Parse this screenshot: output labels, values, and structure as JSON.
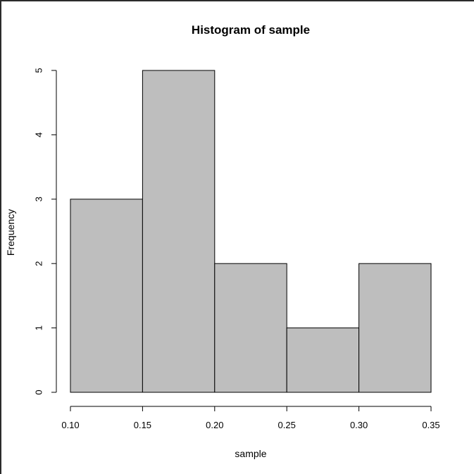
{
  "chart_data": {
    "type": "bar",
    "title": "Histogram of sample",
    "xlabel": "sample",
    "ylabel": "Frequency",
    "bins": [
      {
        "start": 0.1,
        "end": 0.15,
        "count": 3
      },
      {
        "start": 0.15,
        "end": 0.2,
        "count": 5
      },
      {
        "start": 0.2,
        "end": 0.25,
        "count": 2
      },
      {
        "start": 0.25,
        "end": 0.3,
        "count": 1
      },
      {
        "start": 0.3,
        "end": 0.35,
        "count": 2
      }
    ],
    "xlim": [
      0.1,
      0.35
    ],
    "ylim": [
      0,
      5
    ],
    "xticks": [
      "0.10",
      "0.15",
      "0.20",
      "0.25",
      "0.30",
      "0.35"
    ],
    "yticks": [
      "0",
      "1",
      "2",
      "3",
      "4",
      "5"
    ],
    "grid": false,
    "colors": {
      "bar_fill": "#bebebe",
      "bar_stroke": "#000000"
    }
  }
}
